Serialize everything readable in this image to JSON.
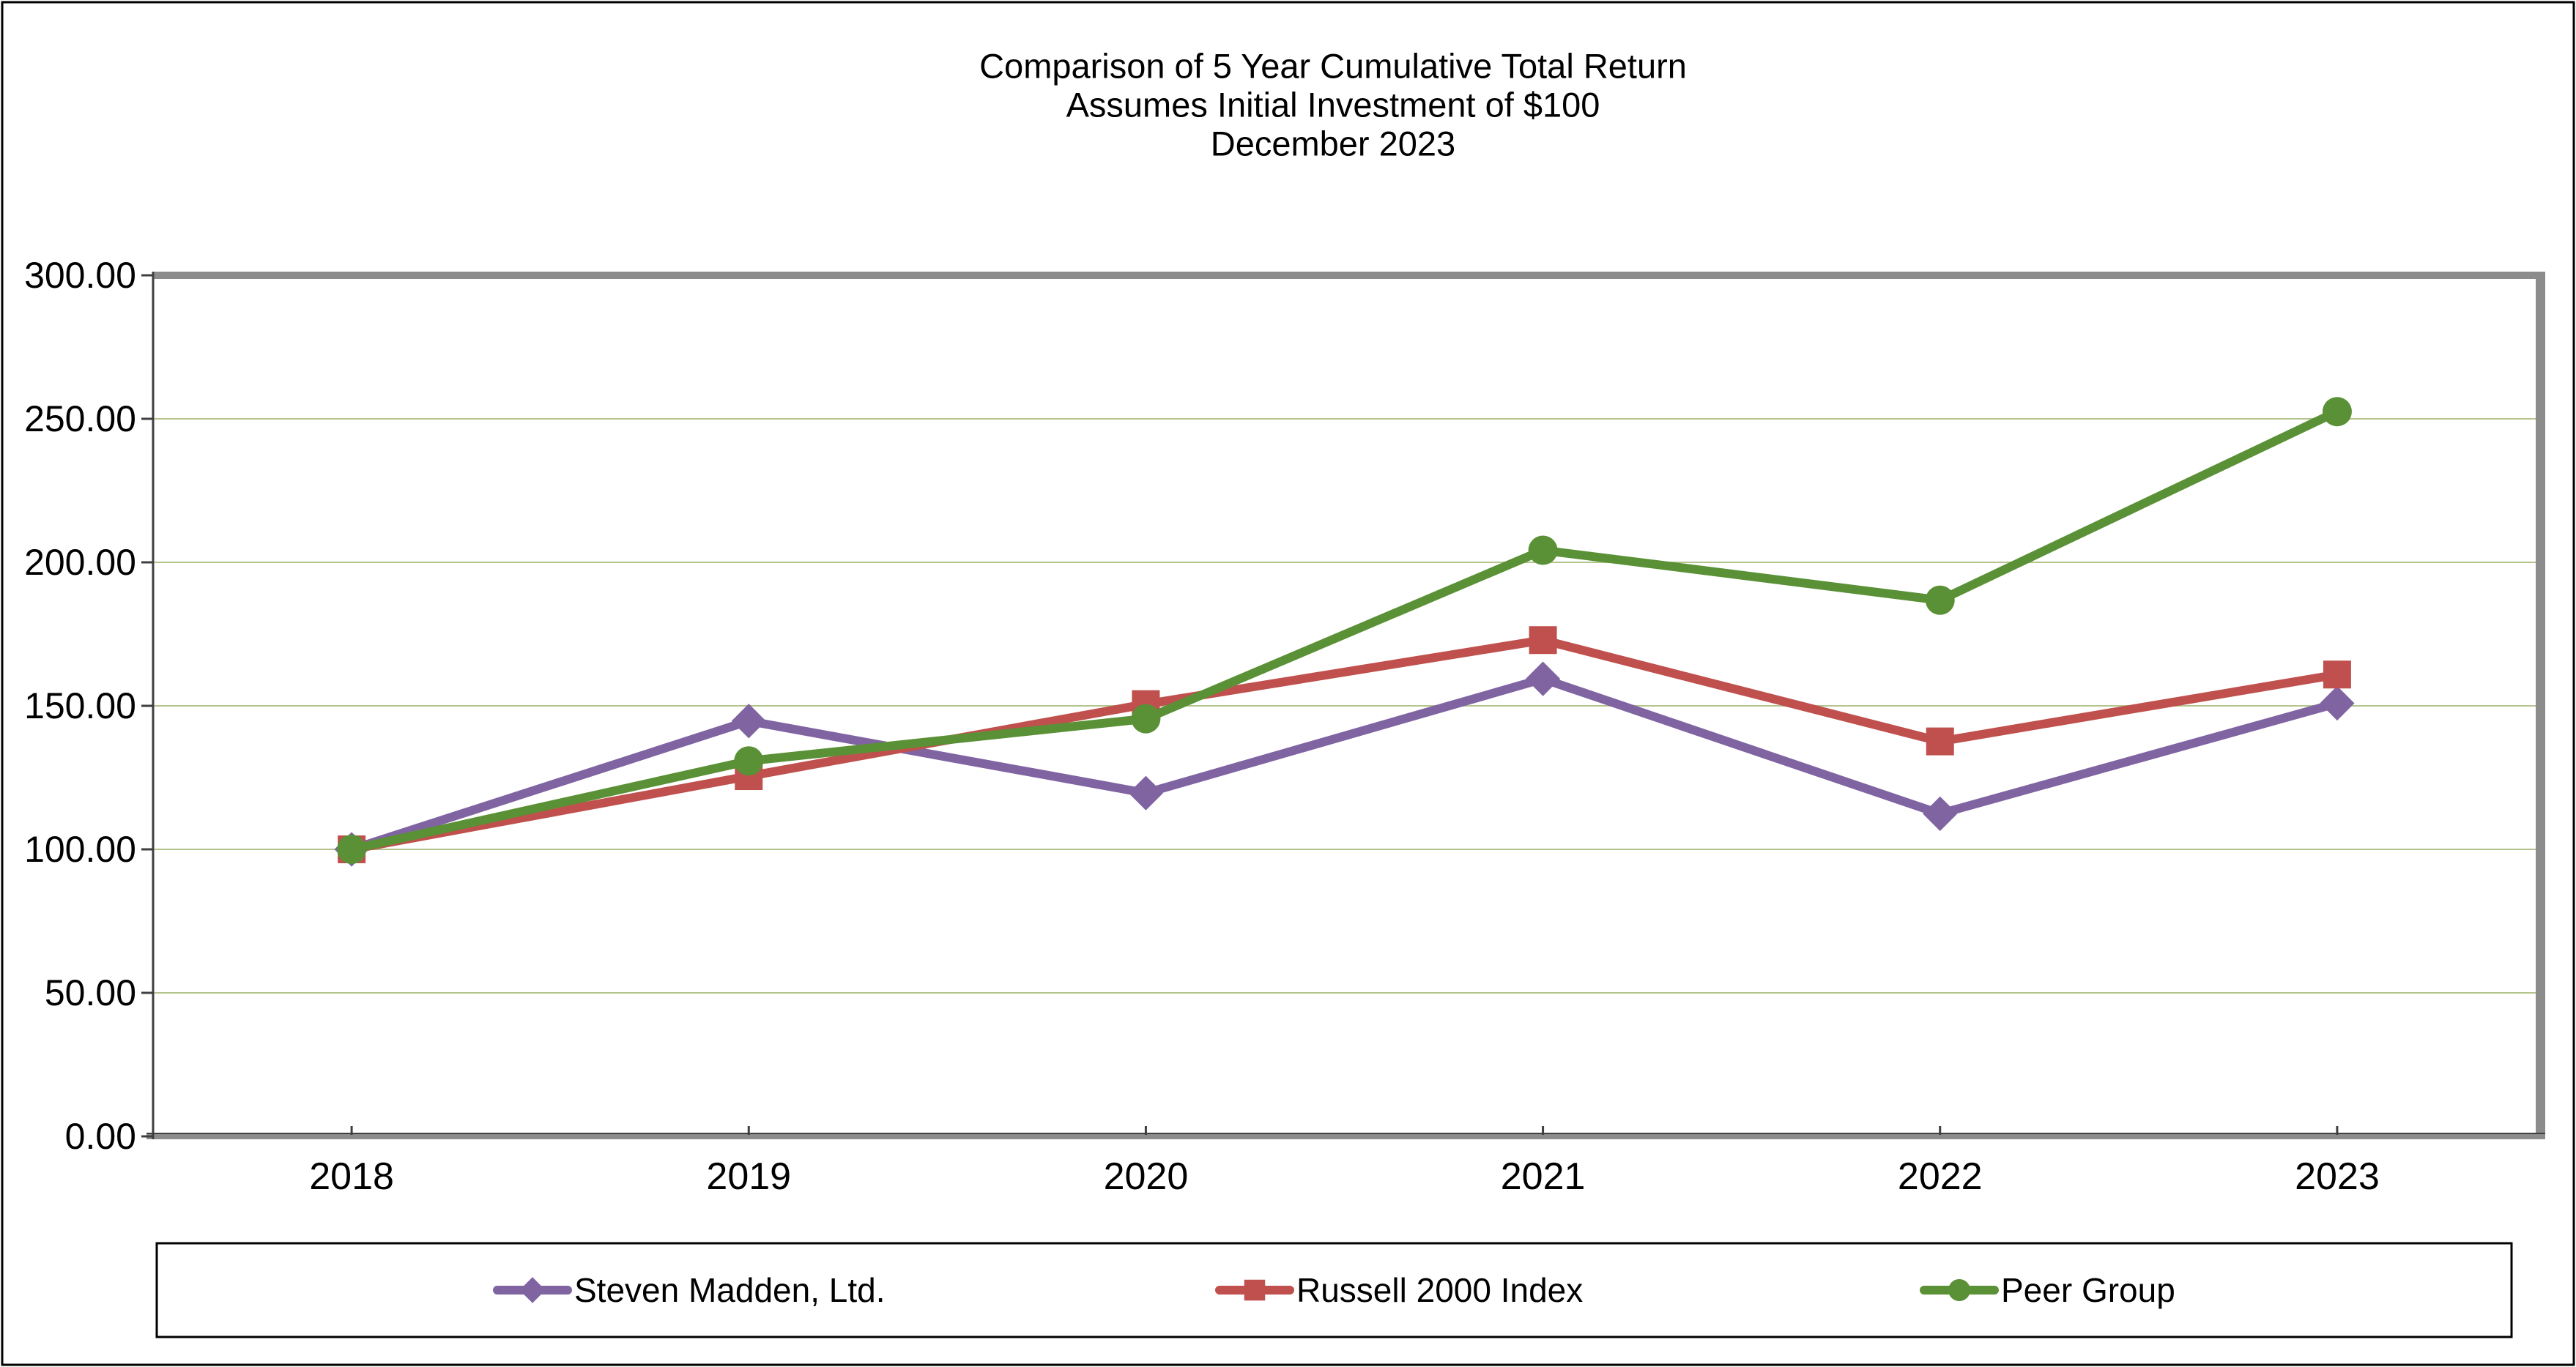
{
  "chart_data": {
    "type": "line",
    "title_lines": [
      "Comparison of 5 Year Cumulative Total Return",
      "Assumes Initial Investment of $100",
      "December 2023"
    ],
    "categories": [
      "2018",
      "2019",
      "2020",
      "2021",
      "2022",
      "2023"
    ],
    "series": [
      {
        "name": "Steven Madden, Ltd.",
        "marker": "diamond",
        "color": "#8064a2",
        "values": [
          100.0,
          144.7,
          119.6,
          159.4,
          112.4,
          150.9
        ]
      },
      {
        "name": "Russell 2000 Index",
        "marker": "square",
        "color": "#c0504d",
        "values": [
          100.0,
          125.5,
          150.6,
          172.9,
          137.6,
          160.9
        ]
      },
      {
        "name": "Peer Group",
        "marker": "circle",
        "color": "#5a9136",
        "values": [
          100.0,
          130.8,
          145.5,
          204.2,
          186.8,
          252.5
        ]
      }
    ],
    "y_axis": {
      "min": 0,
      "max": 300,
      "step": 50,
      "tick_labels": [
        "0.00",
        "50.00",
        "100.00",
        "150.00",
        "200.00",
        "250.00",
        "300.00"
      ]
    },
    "x_axis": {
      "tick_labels": [
        "2018",
        "2019",
        "2020",
        "2021",
        "2022",
        "2023"
      ]
    },
    "grid": true,
    "legend_position": "bottom",
    "colors": {
      "gridline": "#b3c48d",
      "plot_border": "#8c8c8c",
      "axis_line": "#3f3f3f",
      "text": "#000000",
      "background": "#ffffff",
      "outer_border": "#000000"
    }
  }
}
